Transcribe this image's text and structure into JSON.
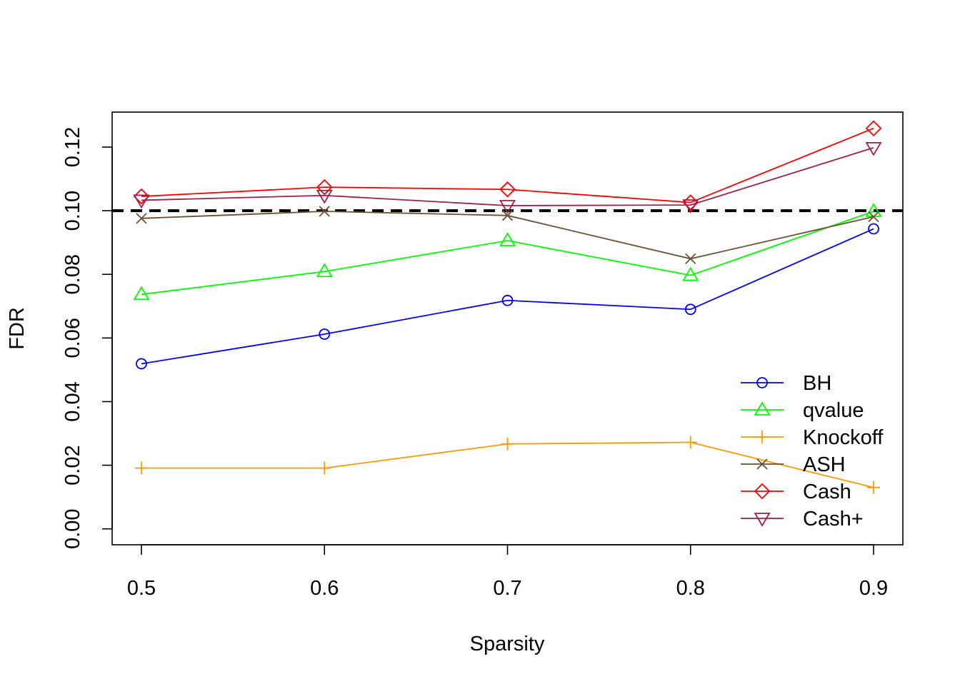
{
  "chart_data": {
    "type": "line",
    "title": "",
    "xlabel": "Sparsity",
    "ylabel": "FDR",
    "x": [
      0.5,
      0.6,
      0.7,
      0.8,
      0.9
    ],
    "x_tick_labels": [
      "0.5",
      "0.6",
      "0.7",
      "0.8",
      "0.9"
    ],
    "y_ticks": [
      0.0,
      0.02,
      0.04,
      0.06,
      0.08,
      0.1,
      0.12
    ],
    "y_tick_labels": [
      "0.00",
      "0.02",
      "0.04",
      "0.06",
      "0.08",
      "0.10",
      "0.12"
    ],
    "xlim": [
      0.484,
      0.916
    ],
    "ylim": [
      -0.005,
      0.131
    ],
    "reference_line": {
      "y": 0.1,
      "style": "dashed",
      "color": "#000000"
    },
    "legend_position": "bottom-right",
    "series": [
      {
        "name": "BH",
        "color": "#0000FF",
        "marker": "circle",
        "values": [
          0.0519,
          0.0612,
          0.0718,
          0.069,
          0.0943
        ]
      },
      {
        "name": "qvalue",
        "color": "#00FF00",
        "marker": "triangle-up",
        "values": [
          0.0737,
          0.0809,
          0.0906,
          0.0797,
          0.0998
        ]
      },
      {
        "name": "Knockoff",
        "color": "#FF9900",
        "marker": "plus",
        "values": [
          0.0191,
          0.0191,
          0.0267,
          0.0272,
          0.013
        ]
      },
      {
        "name": "ASH",
        "color": "#6B5033",
        "marker": "cross",
        "values": [
          0.0976,
          0.0998,
          0.0985,
          0.0849,
          0.0981
        ]
      },
      {
        "name": "Cash",
        "color": "#FF0000",
        "marker": "diamond",
        "values": [
          0.1045,
          0.1074,
          0.1067,
          0.1026,
          0.1259
        ]
      },
      {
        "name": "Cash+",
        "color": "#9E1F4A",
        "marker": "triangle-down",
        "values": [
          0.1033,
          0.1048,
          0.1016,
          0.1018,
          0.1198
        ]
      }
    ]
  }
}
